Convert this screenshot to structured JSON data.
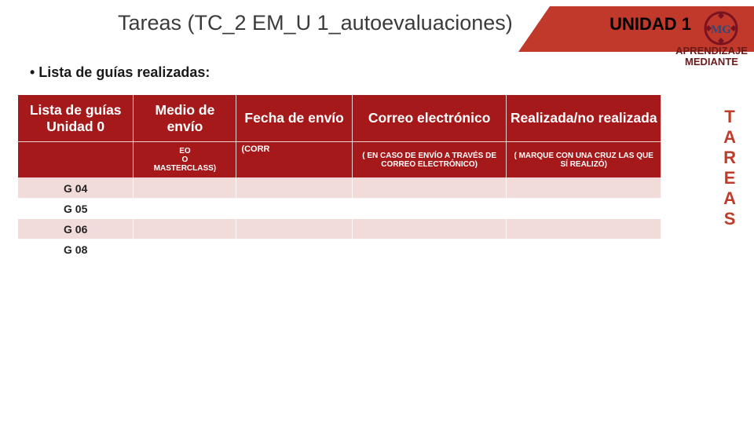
{
  "colors": {
    "accent": "#c0392b",
    "header_bg": "#a6191a",
    "row_tint": "#f2dcd9",
    "text_dark": "#1a1a1a",
    "side_text": "#bd3d2a",
    "subheader_text": "#6a1a1a"
  },
  "title": "Tareas (TC_2 EM_U 1_autoevaluaciones)",
  "unit_badge": "UNIDAD 1",
  "logo_text": "MG",
  "subheader": "APRENDIZAJE MEDIANTE",
  "bullet": "• Lista de guías realizadas:",
  "side_vertical": [
    "T",
    "A",
    "R",
    "E",
    "A",
    "S"
  ],
  "table": {
    "columns": [
      {
        "label": "Lista de guías Unidad 0",
        "sub": ""
      },
      {
        "label": "Medio de envío",
        "sub": "EO\nO\nMASTERCLASS)"
      },
      {
        "label": "Fecha de envío",
        "sub": "(CORR"
      },
      {
        "label": "Correo electrónico",
        "sub": "( EN CASO DE ENVÍO A TRAVÉS DE CORREO ELECTRÓNICO)"
      },
      {
        "label": "Realizada/no realizada",
        "sub": "( MARQUE CON UNA CRUZ LAS QUE SÍ REALIZÓ)"
      }
    ],
    "row_labels": [
      "G 04",
      "G 05",
      "G 06",
      "G 08"
    ]
  }
}
